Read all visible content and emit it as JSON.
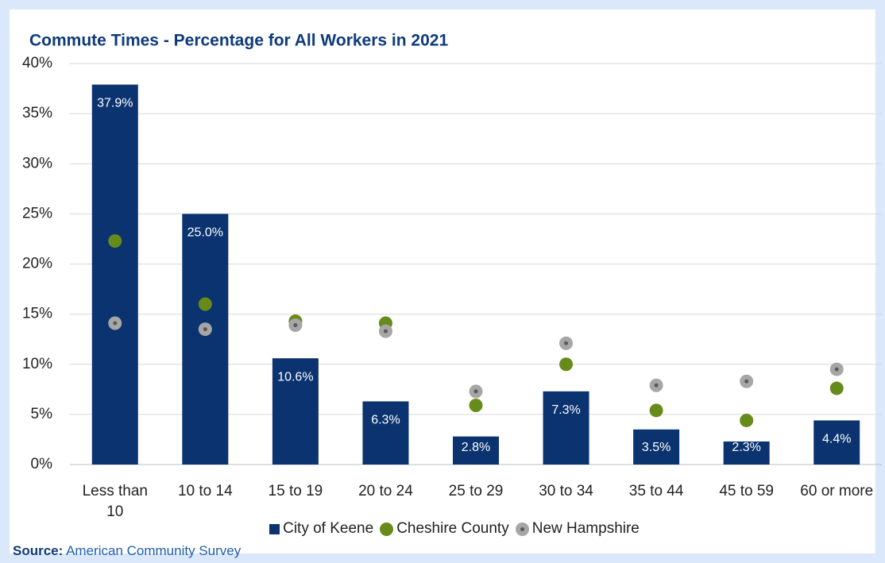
{
  "chart_data": {
    "type": "bar",
    "title": "Commute Times - Percentage for All Workers in 2021",
    "categories": [
      "Less than 10",
      "10 to 14",
      "15 to 19",
      "20 to 24",
      "25 to 29",
      "30 to 34",
      "35 to 44",
      "45 to 59",
      "60 or more"
    ],
    "series": [
      {
        "name": "City of Keene",
        "mark": "bar",
        "color": "#0b3370",
        "values": [
          37.9,
          25.0,
          10.6,
          6.3,
          2.8,
          7.3,
          3.5,
          2.3,
          4.4
        ],
        "value_labels": [
          "37.9%",
          "25.0%",
          "10.6%",
          "6.3%",
          "2.8%",
          "7.3%",
          "3.5%",
          "2.3%",
          "4.4%"
        ]
      },
      {
        "name": "Cheshire County",
        "mark": "dot",
        "color": "#668b1a",
        "values": [
          22.3,
          16.0,
          14.3,
          14.1,
          5.9,
          10.0,
          5.4,
          4.4,
          7.6
        ]
      },
      {
        "name": "New Hampshire",
        "mark": "ringdot",
        "color": "#a6a6a6",
        "values": [
          14.1,
          13.5,
          13.9,
          13.3,
          7.3,
          12.1,
          7.9,
          8.3,
          9.5
        ]
      }
    ],
    "ylim": [
      0,
      40
    ],
    "yticks": [
      {
        "value": 0,
        "label": "0%"
      },
      {
        "value": 5,
        "label": "5%"
      },
      {
        "value": 10,
        "label": "10%"
      },
      {
        "value": 15,
        "label": "15%"
      },
      {
        "value": 20,
        "label": "20%"
      },
      {
        "value": 25,
        "label": "25%"
      },
      {
        "value": 30,
        "label": "30%"
      },
      {
        "value": 35,
        "label": "35%"
      },
      {
        "value": 40,
        "label": "40%"
      }
    ],
    "grid": true,
    "legend": "bottom",
    "source_label": "Source:",
    "source": "American Community Survey"
  }
}
